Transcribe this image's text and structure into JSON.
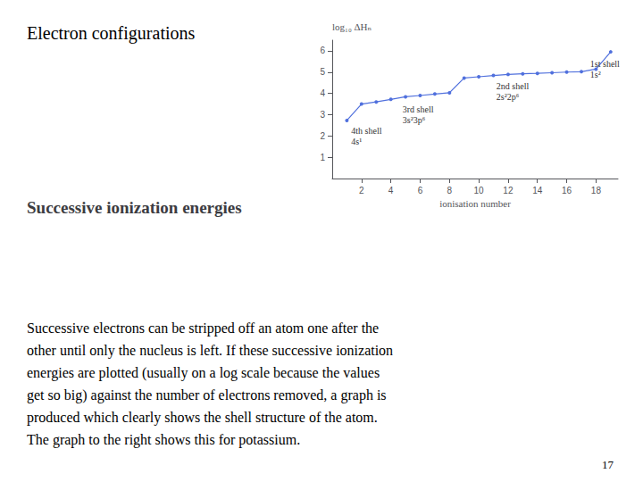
{
  "chart_data": {
    "type": "line",
    "title": "Electron configurations",
    "subtitle": "Successive ionization energies",
    "xlabel": "ionisation number",
    "ylabel": "log₁₀ ΔHₙ",
    "x": [
      1,
      2,
      3,
      4,
      5,
      6,
      7,
      8,
      9,
      10,
      11,
      12,
      13,
      14,
      15,
      16,
      17,
      18,
      19
    ],
    "values": [
      2.73,
      3.5,
      3.6,
      3.72,
      3.84,
      3.9,
      3.97,
      4.03,
      4.72,
      4.78,
      4.84,
      4.89,
      4.92,
      4.94,
      4.97,
      5.0,
      5.02,
      5.14,
      5.95
    ],
    "xlim": [
      0,
      19.5
    ],
    "ylim": [
      0,
      6.5
    ],
    "xticks": [
      2,
      4,
      6,
      8,
      10,
      12,
      14,
      16,
      18
    ],
    "yticks": [
      1,
      2,
      3,
      4,
      5,
      6
    ],
    "grid": false,
    "annotations": [
      "4th shell\n4s¹",
      "3rd shell\n3s²3p⁶",
      "2nd shell\n2s²2p⁶",
      "1st shell\n1s²"
    ],
    "body": [
      "Successive electrons can be stripped off an atom one after the",
      "other until only the nucleus is left. If these successive ionization",
      "energies are plotted (usually on a log scale because the values",
      "get so big) against the number of electrons removed, a graph is",
      "produced which clearly shows the shell structure of the atom.",
      "The graph to the right shows this for potassium."
    ],
    "page_number": "17"
  }
}
